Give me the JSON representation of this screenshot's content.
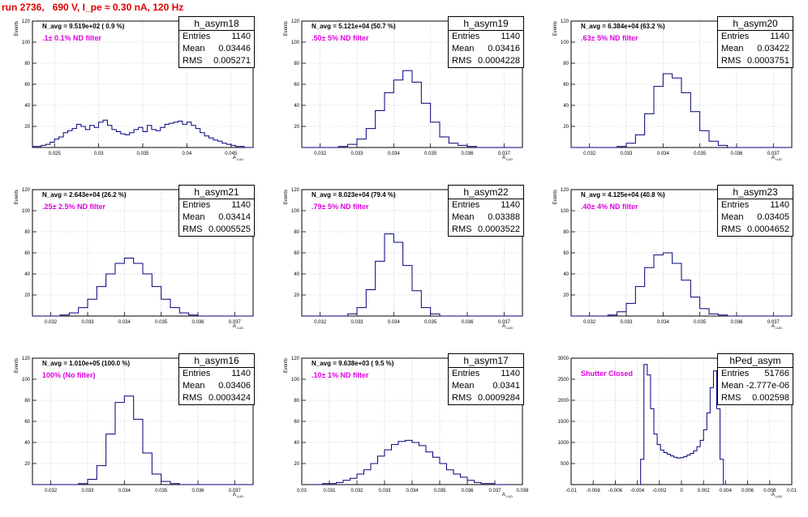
{
  "run_title": "run 2736,   690 V, I_pe ≈ 0.30 nA, 120 Hz",
  "colors": {
    "hist": "#00007a",
    "annotation": "#e000e0",
    "title": "#e00000",
    "grid": "#b0b0b0"
  },
  "chart_data": [
    {
      "type": "histogram",
      "name": "h_asym18",
      "ylabel": "Events",
      "xlabel": "A_LUD",
      "navg": "N_avg = 9.519e+02 ( 0.9 %)",
      "filter": ".1± 0.1% ND filter",
      "entries": "1140",
      "mean": "0.03446",
      "rms": "0.005271",
      "xlim": [
        0.0225,
        0.0475
      ],
      "ylim": [
        0,
        120
      ],
      "xticks": [
        "0.025",
        "0.03",
        "0.035",
        "0.04",
        "0.045"
      ],
      "yticks": [
        "20",
        "40",
        "60",
        "80",
        "100",
        "120"
      ],
      "bins_x": [
        0.0225,
        0.023,
        0.0235,
        0.024,
        0.0245,
        0.025,
        0.0255,
        0.026,
        0.0265,
        0.027,
        0.0275,
        0.028,
        0.0285,
        0.029,
        0.0295,
        0.03,
        0.0305,
        0.031,
        0.0315,
        0.032,
        0.0325,
        0.033,
        0.0335,
        0.034,
        0.0345,
        0.035,
        0.0355,
        0.036,
        0.0365,
        0.037,
        0.0375,
        0.038,
        0.0385,
        0.039,
        0.0395,
        0.04,
        0.0405,
        0.041,
        0.0415,
        0.042,
        0.0425,
        0.043,
        0.0435,
        0.044,
        0.0445,
        0.045,
        0.0455,
        0.046,
        0.0465,
        0.047
      ],
      "counts": [
        1,
        1,
        2,
        3,
        5,
        8,
        10,
        14,
        16,
        18,
        22,
        20,
        17,
        21,
        19,
        24,
        26,
        21,
        17,
        15,
        13,
        12,
        14,
        17,
        19,
        15,
        21,
        17,
        16,
        19,
        22,
        23,
        24,
        25,
        22,
        24,
        21,
        18,
        14,
        11,
        9,
        7,
        6,
        4,
        3,
        2,
        1,
        1,
        0,
        0
      ]
    },
    {
      "type": "histogram",
      "name": "h_asym19",
      "ylabel": "Events",
      "xlabel": "A_LUD",
      "navg": "N_avg = 5.121e+04 (50.7 %)",
      "filter": ".50± 5% ND filter",
      "entries": "1140",
      "mean": "0.03416",
      "rms": "0.0004228",
      "xlim": [
        0.0315,
        0.0375
      ],
      "ylim": [
        0,
        120
      ],
      "xticks": [
        "0.032",
        "0.033",
        "0.034",
        "0.035",
        "0.036",
        "0.037"
      ],
      "yticks": [
        "20",
        "40",
        "60",
        "80",
        "100",
        "120"
      ],
      "bins_x": [
        0.0315,
        0.03175,
        0.032,
        0.03225,
        0.0325,
        0.03275,
        0.033,
        0.03325,
        0.0335,
        0.03375,
        0.034,
        0.03425,
        0.0345,
        0.03475,
        0.035,
        0.03525,
        0.0355,
        0.03575,
        0.036,
        0.03625,
        0.0365,
        0.03675,
        0.037,
        0.03725
      ],
      "counts": [
        0,
        0,
        0,
        0,
        1,
        3,
        8,
        18,
        35,
        52,
        64,
        73,
        62,
        42,
        24,
        10,
        4,
        2,
        1,
        0,
        0,
        0,
        0,
        0
      ]
    },
    {
      "type": "histogram",
      "name": "h_asym20",
      "ylabel": "Events",
      "xlabel": "A_LUD",
      "navg": "N_avg = 6.384e+04 (63.2 %)",
      "filter": ".63± 5% ND filter",
      "entries": "1140",
      "mean": "0.03422",
      "rms": "0.0003751",
      "xlim": [
        0.0315,
        0.0375
      ],
      "ylim": [
        0,
        120
      ],
      "xticks": [
        "0.032",
        "0.033",
        "0.034",
        "0.035",
        "0.036",
        "0.037"
      ],
      "yticks": [
        "20",
        "40",
        "60",
        "80",
        "100",
        "120"
      ],
      "bins_x": [
        0.0315,
        0.03175,
        0.032,
        0.03225,
        0.0325,
        0.03275,
        0.033,
        0.03325,
        0.0335,
        0.03375,
        0.034,
        0.03425,
        0.0345,
        0.03475,
        0.035,
        0.03525,
        0.0355,
        0.03575,
        0.036,
        0.03625,
        0.0365,
        0.03675,
        0.037,
        0.03725
      ],
      "counts": [
        0,
        0,
        0,
        0,
        0,
        1,
        4,
        12,
        32,
        58,
        70,
        66,
        52,
        34,
        16,
        6,
        2,
        0,
        0,
        0,
        0,
        0,
        0,
        0
      ]
    },
    {
      "type": "histogram",
      "name": "h_asym21",
      "ylabel": "Events",
      "xlabel": "A_LUD",
      "navg": "N_avg = 2.643e+04 (26.2 %)",
      "filter": ".25± 2.5% ND filter",
      "entries": "1140",
      "mean": "0.03414",
      "rms": "0.0005525",
      "xlim": [
        0.0315,
        0.0375
      ],
      "ylim": [
        0,
        120
      ],
      "xticks": [
        "0.032",
        "0.033",
        "0.034",
        "0.035",
        "0.036",
        "0.037"
      ],
      "yticks": [
        "20",
        "40",
        "60",
        "80",
        "100",
        "120"
      ],
      "bins_x": [
        0.0315,
        0.03175,
        0.032,
        0.03225,
        0.0325,
        0.03275,
        0.033,
        0.03325,
        0.0335,
        0.03375,
        0.034,
        0.03425,
        0.0345,
        0.03475,
        0.035,
        0.03525,
        0.0355,
        0.03575,
        0.036,
        0.03625,
        0.0365,
        0.03675,
        0.037,
        0.03725
      ],
      "counts": [
        0,
        0,
        0,
        1,
        3,
        8,
        16,
        28,
        40,
        50,
        55,
        50,
        40,
        28,
        16,
        8,
        3,
        1,
        0,
        0,
        0,
        0,
        0,
        0
      ]
    },
    {
      "type": "histogram",
      "name": "h_asym22",
      "ylabel": "Events",
      "xlabel": "A_LUD",
      "navg": "N_avg = 8.023e+04 (79.4 %)",
      "filter": ".79± 5% ND filter",
      "entries": "1140",
      "mean": "0.03388",
      "rms": "0.0003522",
      "xlim": [
        0.0315,
        0.0375
      ],
      "ylim": [
        0,
        120
      ],
      "xticks": [
        "0.032",
        "0.033",
        "0.034",
        "0.035",
        "0.036",
        "0.037"
      ],
      "yticks": [
        "20",
        "40",
        "60",
        "80",
        "100",
        "120"
      ],
      "bins_x": [
        0.0315,
        0.03175,
        0.032,
        0.03225,
        0.0325,
        0.03275,
        0.033,
        0.03325,
        0.0335,
        0.03375,
        0.034,
        0.03425,
        0.0345,
        0.03475,
        0.035,
        0.03525,
        0.0355,
        0.03575,
        0.036,
        0.03625,
        0.0365,
        0.03675,
        0.037,
        0.03725
      ],
      "counts": [
        0,
        0,
        0,
        0,
        0,
        2,
        8,
        25,
        52,
        78,
        70,
        48,
        24,
        8,
        2,
        0,
        0,
        0,
        0,
        0,
        0,
        0,
        0,
        0
      ]
    },
    {
      "type": "histogram",
      "name": "h_asym23",
      "ylabel": "Events",
      "xlabel": "A_LUD",
      "navg": "N_avg = 4.125e+04 (40.8 %)",
      "filter": ".40± 4% ND filter",
      "entries": "1140",
      "mean": "0.03405",
      "rms": "0.0004652",
      "xlim": [
        0.0315,
        0.0375
      ],
      "ylim": [
        0,
        120
      ],
      "xticks": [
        "0.032",
        "0.033",
        "0.034",
        "0.035",
        "0.036",
        "0.037"
      ],
      "yticks": [
        "20",
        "40",
        "60",
        "80",
        "100",
        "120"
      ],
      "bins_x": [
        0.0315,
        0.03175,
        0.032,
        0.03225,
        0.0325,
        0.03275,
        0.033,
        0.03325,
        0.0335,
        0.03375,
        0.034,
        0.03425,
        0.0345,
        0.03475,
        0.035,
        0.03525,
        0.0355,
        0.03575,
        0.036,
        0.03625,
        0.0365,
        0.03675,
        0.037,
        0.03725
      ],
      "counts": [
        0,
        0,
        0,
        0,
        1,
        4,
        12,
        28,
        46,
        58,
        60,
        50,
        34,
        18,
        7,
        2,
        1,
        0,
        0,
        0,
        0,
        0,
        0,
        0
      ]
    },
    {
      "type": "histogram",
      "name": "h_asym16",
      "ylabel": "Events",
      "xlabel": "A_LUD",
      "navg": "N_avg = 1.010e+05 (100.0 %)",
      "filter": "100% (No filter)",
      "entries": "1140",
      "mean": "0.03406",
      "rms": "0.0003424",
      "xlim": [
        0.0315,
        0.0375
      ],
      "ylim": [
        0,
        120
      ],
      "xticks": [
        "0.032",
        "0.033",
        "0.034",
        "0.035",
        "0.036",
        "0.037"
      ],
      "yticks": [
        "20",
        "40",
        "60",
        "80",
        "100",
        "120"
      ],
      "bins_x": [
        0.0315,
        0.03175,
        0.032,
        0.03225,
        0.0325,
        0.03275,
        0.033,
        0.03325,
        0.0335,
        0.03375,
        0.034,
        0.03425,
        0.0345,
        0.03475,
        0.035,
        0.03525,
        0.0355,
        0.03575,
        0.036,
        0.03625,
        0.0365,
        0.03675,
        0.037,
        0.03725
      ],
      "counts": [
        0,
        0,
        0,
        0,
        0,
        1,
        5,
        18,
        48,
        78,
        84,
        62,
        30,
        10,
        3,
        1,
        0,
        0,
        0,
        0,
        0,
        0,
        0,
        0
      ]
    },
    {
      "type": "histogram",
      "name": "h_asym17",
      "ylabel": "Events",
      "xlabel": "A_LUD",
      "navg": "N_avg = 9.638e+03 ( 9.5 %)",
      "filter": ".10± 1% ND filter",
      "entries": "1140",
      "mean": "0.0341",
      "rms": "0.0009284",
      "xlim": [
        0.03,
        0.038
      ],
      "ylim": [
        0,
        120
      ],
      "xticks": [
        "0.03",
        "0.031",
        "0.032",
        "0.033",
        "0.034",
        "0.035",
        "0.036",
        "0.037",
        "0.038"
      ],
      "yticks": [
        "20",
        "40",
        "60",
        "80",
        "100",
        "120"
      ],
      "bins_x": [
        0.0305,
        0.03075,
        0.031,
        0.03125,
        0.0315,
        0.03175,
        0.032,
        0.03225,
        0.0325,
        0.03275,
        0.033,
        0.03325,
        0.0335,
        0.03375,
        0.034,
        0.03425,
        0.0345,
        0.03475,
        0.035,
        0.03525,
        0.0355,
        0.03575,
        0.036,
        0.03625,
        0.0365,
        0.03675,
        0.037,
        0.03725
      ],
      "counts": [
        0,
        1,
        1,
        2,
        4,
        6,
        10,
        14,
        20,
        27,
        33,
        38,
        41,
        42,
        40,
        37,
        31,
        26,
        20,
        14,
        10,
        7,
        4,
        2,
        1,
        1,
        0,
        0
      ]
    },
    {
      "type": "histogram",
      "name": "hPed_asym",
      "ylabel": "",
      "xlabel": "A_LUD",
      "navg": "",
      "filter": "Shutter Closed",
      "entries": "51766",
      "mean": "-2.777e-06",
      "rms": "0.002598",
      "xlim": [
        -0.01,
        0.01
      ],
      "ylim": [
        0,
        3000
      ],
      "xticks": [
        "-0.01",
        "-0.008",
        "-0.006",
        "-0.004",
        "-0.002",
        "0",
        "0.002",
        "0.004",
        "0.006",
        "0.008",
        "0.01"
      ],
      "yticks": [
        "500",
        "1000",
        "1500",
        "2000",
        "2500",
        "3000"
      ],
      "bins_x": [
        -0.004,
        -0.0037,
        -0.0034,
        -0.0031,
        -0.0028,
        -0.0025,
        -0.0022,
        -0.0019,
        -0.0016,
        -0.0013,
        -0.001,
        -0.0007,
        -0.0004,
        -0.0001,
        0.0002,
        0.0005,
        0.0008,
        0.0011,
        0.0014,
        0.0017,
        0.002,
        0.0023,
        0.0026,
        0.0029,
        0.0032,
        0.0035,
        0.0038
      ],
      "counts": [
        0,
        600,
        2850,
        2600,
        1800,
        1200,
        950,
        820,
        760,
        720,
        680,
        650,
        630,
        640,
        660,
        700,
        740,
        800,
        900,
        1050,
        1300,
        1700,
        2300,
        2700,
        1800,
        600,
        0
      ]
    }
  ]
}
